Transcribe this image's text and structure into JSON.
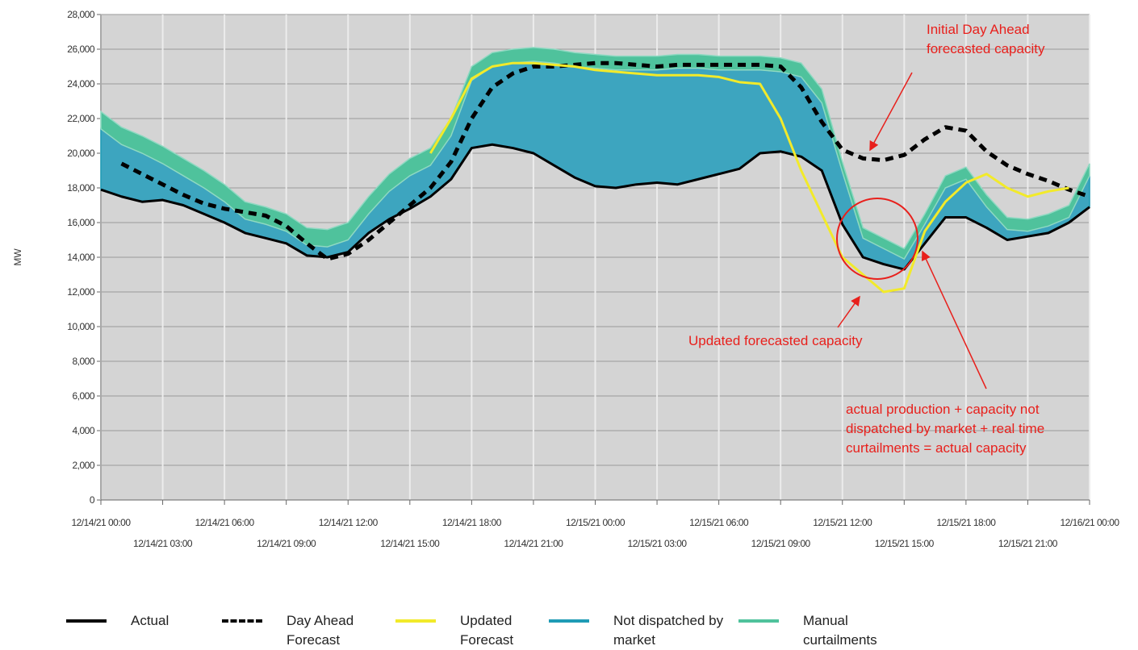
{
  "chart_data": {
    "type": "line",
    "y_label": "MW",
    "x": [
      "12/14/21 00:00",
      "12/14/21 01:00",
      "12/14/21 02:00",
      "12/14/21 03:00",
      "12/14/21 04:00",
      "12/14/21 05:00",
      "12/14/21 06:00",
      "12/14/21 07:00",
      "12/14/21 08:00",
      "12/14/21 09:00",
      "12/14/21 10:00",
      "12/14/21 11:00",
      "12/14/21 12:00",
      "12/14/21 13:00",
      "12/14/21 14:00",
      "12/14/21 15:00",
      "12/14/21 16:00",
      "12/14/21 17:00",
      "12/14/21 18:00",
      "12/14/21 19:00",
      "12/14/21 20:00",
      "12/14/21 21:00",
      "12/14/21 22:00",
      "12/14/21 23:00",
      "12/15/21 00:00",
      "12/15/21 01:00",
      "12/15/21 02:00",
      "12/15/21 03:00",
      "12/15/21 04:00",
      "12/15/21 05:00",
      "12/15/21 06:00",
      "12/15/21 07:00",
      "12/15/21 08:00",
      "12/15/21 09:00",
      "12/15/21 10:00",
      "12/15/21 11:00",
      "12/15/21 12:00",
      "12/15/21 13:00",
      "12/15/21 14:00",
      "12/15/21 15:00",
      "12/15/21 16:00",
      "12/15/21 17:00",
      "12/15/21 18:00",
      "12/15/21 19:00",
      "12/15/21 20:00",
      "12/15/21 21:00",
      "12/15/21 22:00",
      "12/15/21 23:00",
      "12/16/21 00:00"
    ],
    "xticks": [
      "12/14/21 00:00",
      "12/14/21 03:00",
      "12/14/21 06:00",
      "12/14/21 09:00",
      "12/14/21 12:00",
      "12/14/21 15:00",
      "12/14/21 18:00",
      "12/14/21 21:00",
      "12/15/21 00:00",
      "12/15/21 03:00",
      "12/15/21 06:00",
      "12/15/21 09:00",
      "12/15/21 12:00",
      "12/15/21 15:00",
      "12/15/21 18:00",
      "12/15/21 21:00",
      "12/16/21 00:00"
    ],
    "ylim": [
      0,
      28000
    ],
    "yticks": [
      0,
      {
        "value": 2000,
        "label": "2,000"
      },
      {
        "value": 4000,
        "label": "4,000"
      },
      {
        "value": 6000,
        "label": "6,000"
      },
      {
        "value": 8000,
        "label": "8,000"
      },
      {
        "value": 10000,
        "label": "10,000"
      },
      {
        "value": 12000,
        "label": "12,000"
      },
      {
        "value": 14000,
        "label": "14,000"
      },
      {
        "value": 16000,
        "label": "16,000"
      },
      {
        "value": 18000,
        "label": "18,000"
      },
      {
        "value": 20000,
        "label": "20,000"
      },
      {
        "value": 22000,
        "label": "22,000"
      },
      {
        "value": 24000,
        "label": "24,000"
      },
      {
        "value": 26000,
        "label": "26,000"
      },
      {
        "value": 28000,
        "label": "28,000"
      }
    ],
    "grid": true,
    "legend": "bottom",
    "series": [
      {
        "name": "Actual",
        "color": "#000000",
        "style": "solid",
        "values": [
          17900,
          17500,
          17200,
          17300,
          17000,
          16500,
          16000,
          15400,
          15100,
          14800,
          14100,
          14000,
          14300,
          15400,
          16200,
          16800,
          17500,
          18500,
          20300,
          20500,
          20300,
          20000,
          19300,
          18600,
          18100,
          18000,
          18200,
          18300,
          18200,
          18500,
          18800,
          19100,
          20000,
          20100,
          19800,
          19000,
          15900,
          14000,
          13600,
          13300,
          14800,
          16300,
          16300,
          15700,
          15000,
          15200,
          15400,
          16000,
          16900
        ]
      },
      {
        "name": "Day Ahead Forecast",
        "color": "#000000",
        "style": "dashed",
        "values": [
          null,
          19400,
          18800,
          18200,
          17600,
          17100,
          16800,
          16600,
          16400,
          15800,
          14800,
          13900,
          14200,
          15000,
          16000,
          17000,
          18000,
          19500,
          22000,
          23800,
          24600,
          25000,
          25000,
          25100,
          25200,
          25200,
          25100,
          25000,
          25100,
          25100,
          25100,
          25100,
          25100,
          25000,
          23800,
          21800,
          20200,
          19700,
          19600,
          19900,
          20800,
          21500,
          21300,
          20100,
          19300,
          18800,
          18400,
          17900,
          17500
        ]
      },
      {
        "name": "Updated Forecast",
        "color": "#f2ea2a",
        "style": "solid",
        "values": [
          null,
          null,
          null,
          null,
          null,
          null,
          null,
          null,
          null,
          null,
          null,
          null,
          null,
          null,
          null,
          null,
          20000,
          22000,
          24300,
          25000,
          25200,
          25200,
          25100,
          25000,
          24800,
          24700,
          24600,
          24500,
          24500,
          24500,
          24400,
          24100,
          24000,
          22000,
          19000,
          16500,
          14000,
          13000,
          12000,
          12200,
          15500,
          17200,
          18300,
          18800,
          18000,
          17500,
          17800,
          18000,
          null
        ]
      },
      {
        "name": "Not dispatched by market",
        "color": "#1f9bb5",
        "fill": "#3da5bf",
        "style": "stacked-band",
        "values": [
          3500,
          3000,
          2800,
          2100,
          1700,
          1500,
          1200,
          800,
          800,
          700,
          600,
          600,
          700,
          1100,
          1600,
          1900,
          1800,
          2500,
          3900,
          4500,
          4900,
          5300,
          5900,
          6400,
          6800,
          6800,
          6600,
          6500,
          6700,
          6400,
          6000,
          5700,
          4800,
          4600,
          4600,
          3900,
          3000,
          1100,
          900,
          600,
          1100,
          1700,
          2200,
          1200,
          600,
          300,
          400,
          300,
          1800
        ]
      },
      {
        "name": "Manual curtailments",
        "color": "#8fd9c2",
        "fill": "#4fc29c",
        "style": "stacked-band",
        "values": [
          1000,
          1000,
          1000,
          1000,
          1000,
          1000,
          1000,
          1000,
          1000,
          1000,
          1000,
          1000,
          1000,
          1000,
          1000,
          1000,
          1000,
          1000,
          800,
          800,
          800,
          800,
          800,
          800,
          800,
          800,
          800,
          800,
          800,
          800,
          800,
          800,
          800,
          800,
          800,
          800,
          600,
          600,
          600,
          600,
          600,
          700,
          700,
          700,
          700,
          700,
          700,
          700,
          700
        ]
      }
    ],
    "annotations": [
      [
        "Initial Day Ahead",
        "forecasted capacity"
      ],
      [
        "Updated forecasted capacity"
      ],
      [
        "actual production + capacity not",
        "dispatched by market + real time",
        "curtailments = actual capacity"
      ]
    ]
  }
}
